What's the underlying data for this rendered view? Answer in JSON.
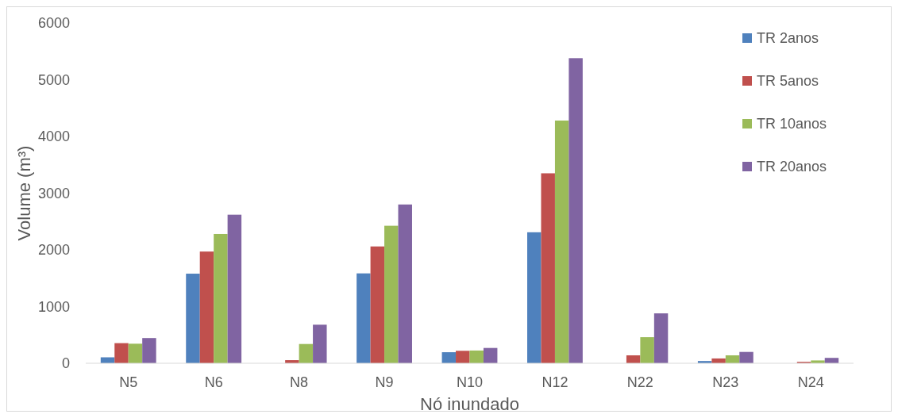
{
  "chart_data": {
    "type": "bar",
    "xlabel": "Nó inundado",
    "ylabel": "Volume (m³)",
    "categories": [
      "N5",
      "N6",
      "N8",
      "N9",
      "N10",
      "N12",
      "N22",
      "N23",
      "N24"
    ],
    "series": [
      {
        "name": "TR 2anos",
        "color": "#4f81bd",
        "values": [
          105,
          1580,
          0,
          1585,
          195,
          2310,
          0,
          40,
          0
        ]
      },
      {
        "name": "TR 5anos",
        "color": "#c0504d",
        "values": [
          355,
          1970,
          55,
          2060,
          220,
          3350,
          140,
          85,
          25
        ]
      },
      {
        "name": "TR 10anos",
        "color": "#9bbb59",
        "values": [
          345,
          2280,
          340,
          2425,
          225,
          4280,
          460,
          140,
          50
        ]
      },
      {
        "name": "TR 20anos",
        "color": "#8064a2",
        "values": [
          445,
          2620,
          680,
          2800,
          270,
          5380,
          880,
          200,
          95
        ]
      }
    ],
    "ylim": [
      0,
      6000
    ],
    "yticks": [
      0,
      1000,
      2000,
      3000,
      4000,
      5000,
      6000
    ],
    "grid": false,
    "legend": "top right"
  }
}
